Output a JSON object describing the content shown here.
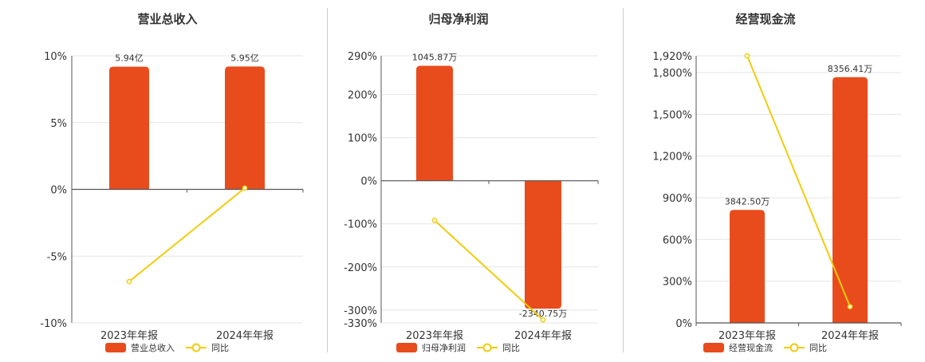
{
  "colors": {
    "bar": "#E84C1D",
    "line": "#F2CC0C",
    "axis": "#555555",
    "grid": "#e6e6e6"
  },
  "chart_data": [
    {
      "type": "bar+line",
      "title": "营业总收入",
      "categories": [
        "2023年年报",
        "2024年年报"
      ],
      "bar_series": {
        "name": "营业总收入",
        "values": [
          5.94,
          5.95
        ],
        "labels": [
          "5.94亿",
          "5.95亿"
        ]
      },
      "line_series": {
        "name": "同比",
        "values": [
          -6.9,
          0.1
        ]
      },
      "ylim": [
        -10,
        10
      ],
      "yticks": [
        10,
        5,
        0,
        -5,
        -10
      ],
      "ytick_labels": [
        "10%",
        "5%",
        "0%",
        "-5%",
        "-10%"
      ]
    },
    {
      "type": "bar+line",
      "title": "归母净利润",
      "categories": [
        "2023年年报",
        "2024年年报"
      ],
      "bar_series": {
        "name": "归母净利润",
        "values": [
          1045.87,
          -2340.75
        ],
        "labels": [
          "1045.87万",
          "-2340.75万"
        ]
      },
      "line_series": {
        "name": "同比",
        "values": [
          -92,
          -323
        ]
      },
      "ylim": [
        -330,
        290
      ],
      "yticks": [
        290,
        200,
        100,
        0,
        -100,
        -200,
        -300,
        -330
      ],
      "ytick_labels": [
        "290%",
        "200%",
        "100%",
        "0%",
        "-100%",
        "-200%",
        "-300%",
        "-330%"
      ]
    },
    {
      "type": "bar+line",
      "title": "经营现金流",
      "categories": [
        "2023年年报",
        "2024年年报"
      ],
      "bar_series": {
        "name": "经营现金流",
        "values": [
          3842.5,
          8356.41
        ],
        "labels": [
          "3842.50万",
          "8356.41万"
        ]
      },
      "line_series": {
        "name": "同比",
        "values": [
          1920,
          117
        ]
      },
      "ylim": [
        0,
        1920
      ],
      "yticks": [
        1920,
        1800,
        1500,
        1200,
        900,
        600,
        300,
        0
      ],
      "ytick_labels": [
        "1,920%",
        "1,800%",
        "1,500%",
        "1,200%",
        "900%",
        "600%",
        "300%",
        "0%"
      ]
    }
  ]
}
